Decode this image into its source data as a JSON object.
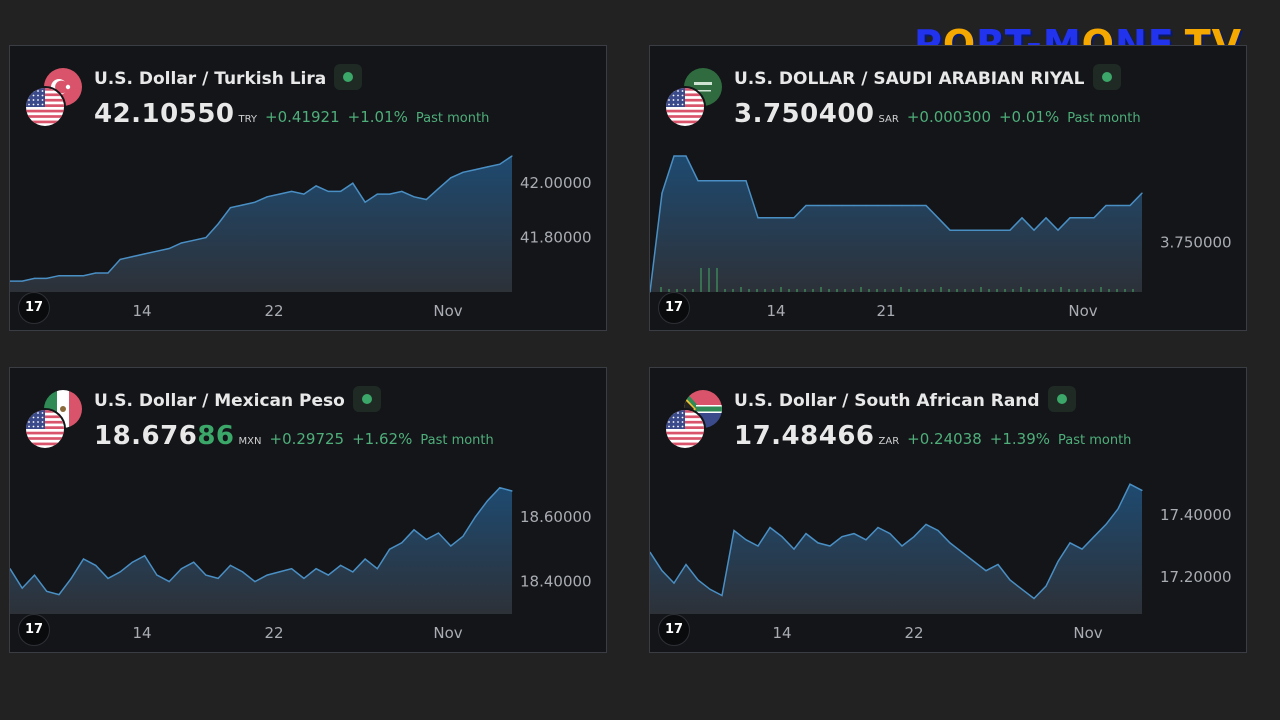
{
  "brand": {
    "text_a": "P",
    "text_o1": "O",
    "text_b": "RT-M",
    "text_o2": "O",
    "text_c": "NE",
    "text_tv": "TV"
  },
  "widgets": [
    {
      "id": "try",
      "title": "U.S. Dollar / Turkish Lira",
      "price_main": "42.10550",
      "price_highlight": "",
      "currency": "TRY",
      "change": "+0.41921",
      "change_pct": "+1.01%",
      "period": "Past month",
      "back_flag": "turkey-flag",
      "front_flag": "us-flag"
    },
    {
      "id": "sar",
      "title": "U.S. DOLLAR / SAUDI ARABIAN RIYAL",
      "price_main": "3.750400",
      "price_highlight": "",
      "currency": "SAR",
      "change": "+0.000300",
      "change_pct": "+0.01%",
      "period": "Past month",
      "back_flag": "saudi-flag",
      "front_flag": "us-flag"
    },
    {
      "id": "mxn",
      "title": "U.S. Dollar / Mexican Peso",
      "price_main": "18.676",
      "price_highlight": "86",
      "currency": "MXN",
      "change": "+0.29725",
      "change_pct": "+1.62%",
      "period": "Past month",
      "back_flag": "mexico-flag",
      "front_flag": "us-flag"
    },
    {
      "id": "zar",
      "title": "U.S. Dollar / South African Rand",
      "price_main": "17.48466",
      "price_highlight": "",
      "currency": "ZAR",
      "change": "+0.24038",
      "change_pct": "+1.39%",
      "period": "Past month",
      "back_flag": "south-africa-flag",
      "front_flag": "us-flag"
    }
  ],
  "tv_logo_text": "17",
  "colors": {
    "line": "#4a8fc4",
    "fill_top": "#1e4a70",
    "fill_bottom": "#2d3138",
    "positive": "#4fae7a",
    "volume": "#3e8a5a"
  },
  "chart_data": [
    {
      "type": "area",
      "title": "U.S. Dollar / Turkish Lira",
      "x_ticks": [
        "14",
        "22",
        "Nov"
      ],
      "y_ticks": [
        42.0,
        41.8
      ],
      "ylim": [
        41.6,
        42.1
      ],
      "series": [
        {
          "values": [
            41.64,
            41.64,
            41.65,
            41.65,
            41.66,
            41.66,
            41.66,
            41.67,
            41.67,
            41.72,
            41.73,
            41.74,
            41.75,
            41.76,
            41.78,
            41.79,
            41.8,
            41.85,
            41.91,
            41.92,
            41.93,
            41.95,
            41.96,
            41.97,
            41.96,
            41.99,
            41.97,
            41.97,
            42.0,
            41.93,
            41.96,
            41.96,
            41.97,
            41.95,
            41.94,
            41.98,
            42.02,
            42.04,
            42.05,
            42.06,
            42.07,
            42.1
          ]
        }
      ]
    },
    {
      "type": "area",
      "title": "U.S. DOLLAR / SAUDI ARABIAN RIYAL",
      "x_ticks": [
        "14",
        "21",
        "Nov"
      ],
      "y_ticks": [
        3.75
      ],
      "ylim": [
        3.7496,
        3.7507
      ],
      "series": [
        {
          "values": [
            3.7496,
            3.7504,
            3.7507,
            3.7507,
            3.7505,
            3.7505,
            3.7505,
            3.7505,
            3.7505,
            3.7502,
            3.7502,
            3.7502,
            3.7502,
            3.7503,
            3.7503,
            3.7503,
            3.7503,
            3.7503,
            3.7503,
            3.7503,
            3.7503,
            3.7503,
            3.7503,
            3.7503,
            3.7502,
            3.7501,
            3.7501,
            3.7501,
            3.7501,
            3.7501,
            3.7501,
            3.7502,
            3.7501,
            3.7502,
            3.7501,
            3.7502,
            3.7502,
            3.7502,
            3.7503,
            3.7503,
            3.7503,
            3.7504
          ]
        }
      ]
    },
    {
      "type": "area",
      "title": "U.S. Dollar / Mexican Peso",
      "x_ticks": [
        "14",
        "22",
        "Nov"
      ],
      "y_ticks": [
        18.6,
        18.4
      ],
      "ylim": [
        18.3,
        18.72
      ],
      "series": [
        {
          "values": [
            18.44,
            18.38,
            18.42,
            18.37,
            18.36,
            18.41,
            18.47,
            18.45,
            18.41,
            18.43,
            18.46,
            18.48,
            18.42,
            18.4,
            18.44,
            18.46,
            18.42,
            18.41,
            18.45,
            18.43,
            18.4,
            18.42,
            18.43,
            18.44,
            18.41,
            18.44,
            18.42,
            18.45,
            18.43,
            18.47,
            18.44,
            18.5,
            18.52,
            18.56,
            18.53,
            18.55,
            18.51,
            18.54,
            18.6,
            18.65,
            18.69,
            18.68
          ]
        }
      ]
    },
    {
      "type": "area",
      "title": "U.S. Dollar / South African Rand",
      "x_ticks": [
        "14",
        "22",
        "Nov"
      ],
      "y_ticks": [
        17.4,
        17.2
      ],
      "ylim": [
        17.08,
        17.52
      ],
      "series": [
        {
          "values": [
            17.28,
            17.22,
            17.18,
            17.24,
            17.19,
            17.16,
            17.14,
            17.35,
            17.32,
            17.3,
            17.36,
            17.33,
            17.29,
            17.34,
            17.31,
            17.3,
            17.33,
            17.34,
            17.32,
            17.36,
            17.34,
            17.3,
            17.33,
            17.37,
            17.35,
            17.31,
            17.28,
            17.25,
            17.22,
            17.24,
            17.19,
            17.16,
            17.13,
            17.17,
            17.25,
            17.31,
            17.29,
            17.33,
            17.37,
            17.42,
            17.5,
            17.48
          ]
        }
      ]
    }
  ]
}
